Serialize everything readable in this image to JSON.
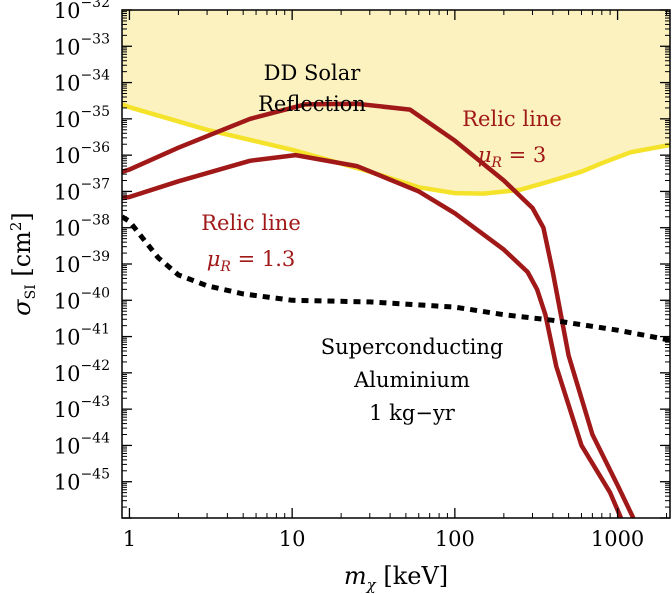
{
  "chart_data": {
    "type": "line",
    "title": "",
    "xlabel": "m_χ [keV]",
    "ylabel": "σ_SI [cm²]",
    "xscale": "log",
    "yscale": "log",
    "xlim": [
      0.9,
      2100
    ],
    "ylim": [
      1e-46,
      1e-32
    ],
    "x_ticks": [
      {
        "value": 1,
        "label": "1"
      },
      {
        "value": 10,
        "label": "10"
      },
      {
        "value": 100,
        "label": "100"
      },
      {
        "value": 1000,
        "label": "1000"
      }
    ],
    "y_ticks": [
      {
        "exp": -32,
        "base": "10",
        "sup": "−32"
      },
      {
        "exp": -33,
        "base": "10",
        "sup": "−33"
      },
      {
        "exp": -34,
        "base": "10",
        "sup": "−34"
      },
      {
        "exp": -35,
        "base": "10",
        "sup": "−35"
      },
      {
        "exp": -36,
        "base": "10",
        "sup": "−36"
      },
      {
        "exp": -37,
        "base": "10",
        "sup": "−37"
      },
      {
        "exp": -38,
        "base": "10",
        "sup": "−38"
      },
      {
        "exp": -39,
        "base": "10",
        "sup": "−39"
      },
      {
        "exp": -40,
        "base": "10",
        "sup": "−40"
      },
      {
        "exp": -41,
        "base": "10",
        "sup": "−41"
      },
      {
        "exp": -42,
        "base": "10",
        "sup": "−42"
      },
      {
        "exp": -43,
        "base": "10",
        "sup": "−43"
      },
      {
        "exp": -44,
        "base": "10",
        "sup": "−44"
      },
      {
        "exp": -45,
        "base": "10",
        "sup": "−45"
      }
    ],
    "colors": {
      "region_fill": "#fbf2bf",
      "region_edge": "#f5e22a",
      "relic": "#a01818",
      "projection": "#000000"
    },
    "series": [
      {
        "name": "DD Solar Reflection",
        "style": "shaded-region-boundary",
        "points": [
          [
            0.9,
            2.5e-35
          ],
          [
            1,
            2.1e-35
          ],
          [
            3,
            5e-36
          ],
          [
            10,
            1.4e-36
          ],
          [
            30,
            3.5e-37
          ],
          [
            60,
            1.3e-37
          ],
          [
            100,
            9e-38
          ],
          [
            150,
            8.7e-38
          ],
          [
            250,
            1.1e-37
          ],
          [
            400,
            2e-37
          ],
          [
            600,
            3.5e-37
          ],
          [
            800,
            6e-37
          ],
          [
            1200,
            1.2e-36
          ],
          [
            2100,
            1.9e-36
          ]
        ]
      },
      {
        "name": "Relic line μR = 3",
        "style": "solid",
        "points": [
          [
            0.9,
            3.5e-37
          ],
          [
            1,
            4e-37
          ],
          [
            2,
            1.6e-36
          ],
          [
            5.5,
            1e-35
          ],
          [
            12,
            2.5e-35
          ],
          [
            25,
            2.6e-35
          ],
          [
            53,
            1.8e-35
          ],
          [
            100,
            2.5e-36
          ],
          [
            200,
            2e-37
          ],
          [
            300,
            3.5e-38
          ],
          [
            350,
            1e-38
          ],
          [
            400,
            6e-40
          ],
          [
            500,
            3e-42
          ],
          [
            700,
            2e-44
          ],
          [
            1000,
            8e-46
          ],
          [
            1250,
            1e-46
          ]
        ]
      },
      {
        "name": "Relic line μR = 1.3",
        "style": "solid",
        "points": [
          [
            0.9,
            6.5e-38
          ],
          [
            1,
            7e-38
          ],
          [
            2,
            1.9e-37
          ],
          [
            5.5,
            7e-37
          ],
          [
            10.5,
            1e-36
          ],
          [
            25,
            5e-37
          ],
          [
            60,
            1e-37
          ],
          [
            100,
            2.5e-38
          ],
          [
            200,
            2.5e-39
          ],
          [
            280,
            6e-40
          ],
          [
            320,
            2e-40
          ],
          [
            360,
            4e-41
          ],
          [
            420,
            1.5e-42
          ],
          [
            600,
            1e-44
          ],
          [
            900,
            5e-46
          ],
          [
            1050,
            1e-46
          ]
        ]
      },
      {
        "name": "Superconducting Aluminium 1 kg−yr",
        "style": "dashed",
        "points": [
          [
            0.9,
            2e-38
          ],
          [
            1,
            1.5e-38
          ],
          [
            1.5,
            1.5e-39
          ],
          [
            2,
            5e-40
          ],
          [
            3,
            2.5e-40
          ],
          [
            5,
            1.5e-40
          ],
          [
            10,
            1e-40
          ],
          [
            30,
            9e-41
          ],
          [
            100,
            6.5e-41
          ],
          [
            200,
            4e-41
          ],
          [
            400,
            2.8e-41
          ],
          [
            1000,
            1.5e-41
          ],
          [
            2100,
            8e-42
          ]
        ]
      }
    ],
    "annotations": {
      "solar": [
        "DD Solar",
        "Reflection"
      ],
      "relic_high": [
        "Relic line",
        "μR = 3"
      ],
      "relic_low": [
        "Relic line",
        "μR = 1.3"
      ],
      "aluminium": [
        "Superconducting",
        "Aluminium",
        "1 kg−yr"
      ]
    }
  }
}
